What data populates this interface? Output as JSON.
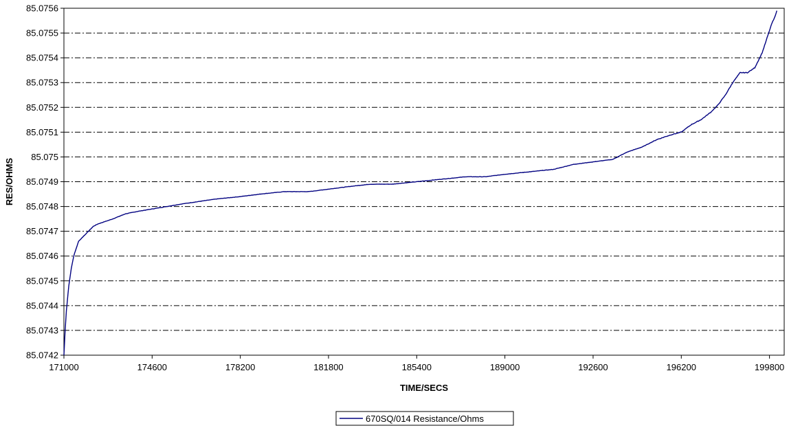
{
  "chart_data": {
    "type": "line",
    "title": "",
    "xlabel": "TIME/SECS",
    "ylabel": "RES/OHMS",
    "xlim": [
      171000,
      200400
    ],
    "ylim": [
      85.0742,
      85.0756
    ],
    "x_ticks": [
      171000,
      174600,
      178200,
      181800,
      185400,
      189000,
      192600,
      196200,
      199800
    ],
    "y_ticks": [
      "85.0742",
      "85.0743",
      "85.0744",
      "85.0745",
      "85.0746",
      "85.0747",
      "85.0748",
      "85.0749",
      "85.075",
      "85.0751",
      "85.0752",
      "85.0753",
      "85.0754",
      "85.0755",
      "85.0756"
    ],
    "grid": "horizontal dashed",
    "legend_position": "bottom-center",
    "colors": {
      "series": "#000080",
      "grid": "#000000",
      "axis": "#000000"
    },
    "series": [
      {
        "name": "670SQ/014 Resistance/Ohms",
        "x": [
          171000,
          171050,
          171100,
          171200,
          171300,
          171400,
          171500,
          171600,
          171800,
          172000,
          172200,
          172400,
          172700,
          173000,
          173500,
          174000,
          174600,
          175200,
          175800,
          176500,
          177200,
          178200,
          179000,
          180000,
          181000,
          181800,
          182600,
          183500,
          184400,
          185400,
          186400,
          187400,
          188200,
          189000,
          190000,
          191000,
          191800,
          192600,
          193400,
          194000,
          194600,
          195200,
          195800,
          196200,
          196600,
          197000,
          197400,
          197700,
          198000,
          198300,
          198600,
          198900,
          199200,
          199500,
          199700,
          199900,
          200000,
          200100
        ],
        "values": [
          85.0742,
          85.0743,
          85.07438,
          85.07448,
          85.07455,
          85.0746,
          85.07463,
          85.07466,
          85.07468,
          85.0747,
          85.07472,
          85.07473,
          85.07474,
          85.07475,
          85.07477,
          85.07478,
          85.07479,
          85.0748,
          85.07481,
          85.07482,
          85.07483,
          85.07484,
          85.07485,
          85.07486,
          85.07486,
          85.07487,
          85.07488,
          85.07489,
          85.07489,
          85.0749,
          85.07491,
          85.07492,
          85.07492,
          85.07493,
          85.07494,
          85.07495,
          85.07497,
          85.07498,
          85.07499,
          85.07502,
          85.07504,
          85.07507,
          85.07509,
          85.0751,
          85.07513,
          85.07515,
          85.07518,
          85.07521,
          85.07525,
          85.0753,
          85.07534,
          85.07534,
          85.07536,
          85.07542,
          85.07548,
          85.07554,
          85.07556,
          85.07559
        ]
      }
    ]
  }
}
